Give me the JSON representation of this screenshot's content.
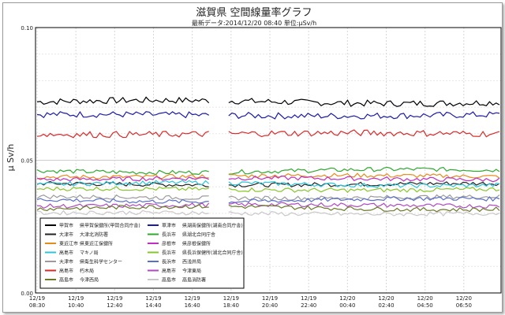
{
  "chart_data": {
    "type": "line",
    "title": "滋賀県 空間線量率グラフ",
    "subtitle": "最新データ:2014/12/20 08:40 単位:μSv/h",
    "ylabel": "μ Sv/h",
    "ylim": [
      0,
      0.1
    ],
    "yticks": [
      "0.00",
      "0.05",
      "0.10"
    ],
    "grid": true,
    "legend_position": "bottom-left",
    "x_ticks": [
      {
        "date": "12/19",
        "time": "08:30"
      },
      {
        "date": "12/19",
        "time": "10:40"
      },
      {
        "date": "12/19",
        "time": "12:40"
      },
      {
        "date": "12/19",
        "time": "14:40"
      },
      {
        "date": "12/19",
        "time": "16:40"
      },
      {
        "date": "12/19",
        "time": "18:40"
      },
      {
        "date": "12/19",
        "time": "20:40"
      },
      {
        "date": "12/19",
        "time": "22:40"
      },
      {
        "date": "12/20",
        "time": "00:40"
      },
      {
        "date": "12/20",
        "time": "02:40"
      },
      {
        "date": "12/20",
        "time": "04:50"
      },
      {
        "date": "12/20",
        "time": "06:50"
      }
    ],
    "series": [
      {
        "name": "甲賀市",
        "site": "県甲賀保健所(甲賀合同庁舎)",
        "color": "#000000",
        "level": 0.072
      },
      {
        "name": "草津市",
        "site": "県湖南保健所(湖南合同庁舎)",
        "color": "#1a1aa8",
        "level": 0.067
      },
      {
        "name": "大津市",
        "site": "大津北消防署",
        "color": "#222222",
        "level": 0.041
      },
      {
        "name": "長浜市",
        "site": "県湖北合同庁舎",
        "color": "#2fa82f",
        "level": 0.046
      },
      {
        "name": "東近江市",
        "site": "県東近江保健所",
        "color": "#e88a1c",
        "level": 0.044
      },
      {
        "name": "彦根市",
        "site": "県彦根保健所",
        "color": "#c02fc0",
        "level": 0.043
      },
      {
        "name": "高島市",
        "site": "マキノ局",
        "color": "#27c6d9",
        "level": 0.041
      },
      {
        "name": "長浜市",
        "site": "県長浜保健所(湖北合同庁舎)",
        "color": "#86c628",
        "level": 0.039
      },
      {
        "name": "大津市",
        "site": "県衛生科学センター",
        "color": "#9b9b9b",
        "level": 0.036
      },
      {
        "name": "長浜市",
        "site": "西浅井局",
        "color": "#5a6fc8",
        "level": 0.035
      },
      {
        "name": "高島市",
        "site": "朽木局",
        "color": "#d82a2a",
        "level": 0.06
      },
      {
        "name": "高島市",
        "site": "今津東局",
        "color": "#b04ac0",
        "level": 0.033
      },
      {
        "name": "高島市",
        "site": "今津西局",
        "color": "#6b7a2a",
        "level": 0.032
      },
      {
        "name": "高島市",
        "site": "高島消防署",
        "color": "#c8c8c8",
        "level": 0.03
      }
    ],
    "gap_range": [
      0.372,
      0.41
    ]
  }
}
